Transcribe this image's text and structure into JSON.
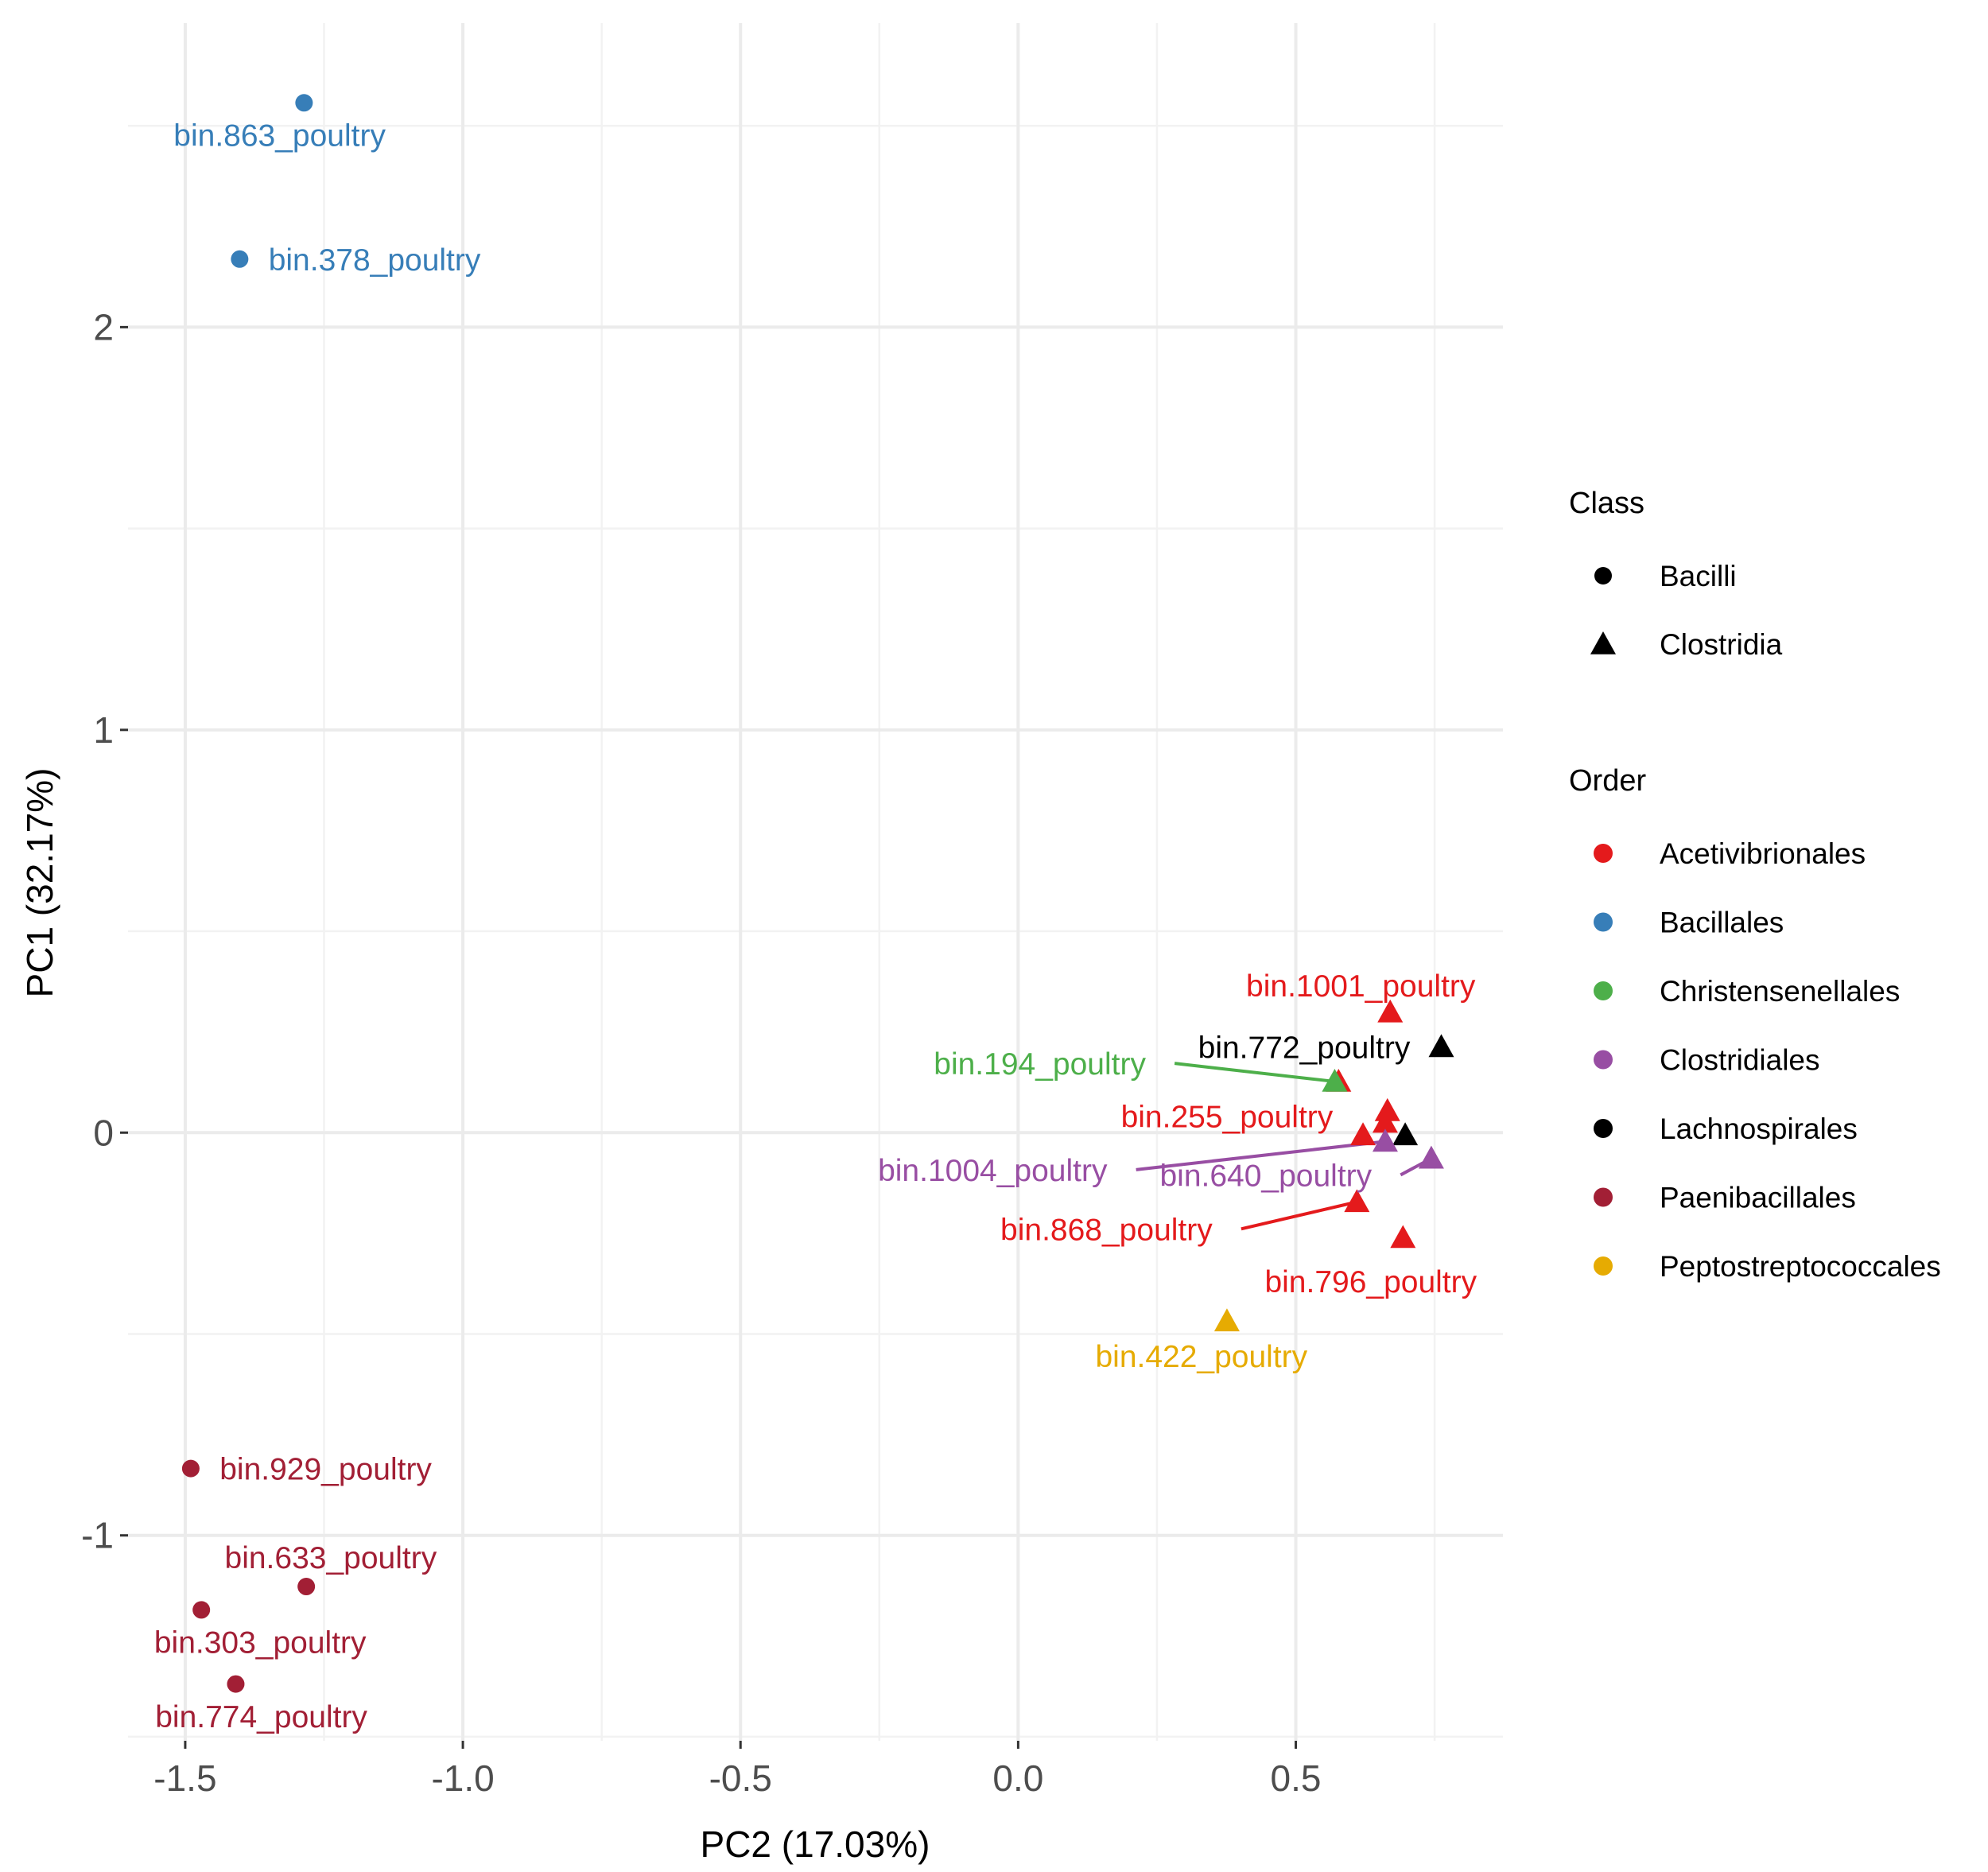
{
  "chart_data": {
    "type": "scatter",
    "xlabel": "PC2 (17.03%)",
    "ylabel": "PC1 (32.17%)",
    "xlim": [
      -1.603,
      0.873
    ],
    "ylim": [
      -1.51,
      2.755
    ],
    "x_ticks": [
      -1.5,
      -1.0,
      -0.5,
      0.0,
      0.5
    ],
    "x_tick_labels": [
      "-1.5",
      "-1.0",
      "-0.5",
      "0.0",
      "0.5"
    ],
    "y_ticks": [
      -1,
      0,
      1,
      2
    ],
    "y_tick_labels": [
      "-1",
      "0",
      "1",
      "2"
    ],
    "x_minor": [
      -1.25,
      -0.75,
      -0.25,
      0.25,
      0.75
    ],
    "y_minor": [
      -1.5,
      -0.5,
      0.5,
      1.5,
      2.5
    ],
    "grid": true,
    "legend_position": "right",
    "legend": {
      "class_title": "Class",
      "classes": [
        {
          "name": "Bacilli",
          "shape": "circle"
        },
        {
          "name": "Clostridia",
          "shape": "triangle"
        }
      ],
      "order_title": "Order",
      "orders": [
        {
          "name": "Acetivibrionales",
          "color": "#E41A1C"
        },
        {
          "name": "Bacillales",
          "color": "#377EB8"
        },
        {
          "name": "Christensenellales",
          "color": "#4DAF4A"
        },
        {
          "name": "Clostridiales",
          "color": "#984EA3"
        },
        {
          "name": "Lachnospirales",
          "color": "#000000"
        },
        {
          "name": "Paenibacillales",
          "color": "#A21F35"
        },
        {
          "name": "Peptostreptococcales",
          "color": "#E6AB02"
        }
      ]
    },
    "points": [
      {
        "label": "bin.863_poultry",
        "x": -1.286,
        "y": 2.557,
        "class": "Bacilli",
        "order": "Bacillales",
        "label_at": [
          -1.33,
          2.478
        ],
        "leader": false
      },
      {
        "label": "bin.378_poultry",
        "x": -1.402,
        "y": 2.169,
        "class": "Bacilli",
        "order": "Bacillales",
        "label_at": [
          -1.159,
          2.169
        ],
        "leader": false
      },
      {
        "label": "bin.929_poultry",
        "x": -1.49,
        "y": -0.834,
        "class": "Bacilli",
        "order": "Paenibacillales",
        "label_at": [
          -1.247,
          -0.834
        ],
        "leader": false
      },
      {
        "label": "bin.633_poultry",
        "x": -1.282,
        "y": -1.127,
        "class": "Bacilli",
        "order": "Paenibacillales",
        "label_at": [
          -1.238,
          -1.054
        ],
        "leader": false
      },
      {
        "label": "bin.303_poultry",
        "x": -1.471,
        "y": -1.185,
        "class": "Bacilli",
        "order": "Paenibacillales",
        "label_at": [
          -1.365,
          -1.264
        ],
        "leader": false
      },
      {
        "label": "bin.774_poultry",
        "x": -1.409,
        "y": -1.369,
        "class": "Bacilli",
        "order": "Paenibacillales",
        "label_at": [
          -1.363,
          -1.449
        ],
        "leader": false
      },
      {
        "label": "",
        "x": 0.577,
        "y": 0.127,
        "class": "Clostridia",
        "order": "Acetivibrionales"
      },
      {
        "label": "bin.1001_poultry",
        "x": 0.67,
        "y": 0.299,
        "class": "Clostridia",
        "order": "Acetivibrionales",
        "label_at": [
          0.617,
          0.366
        ],
        "leader": false
      },
      {
        "label": "bin.772_poultry",
        "x": 0.762,
        "y": 0.213,
        "class": "Clostridia",
        "order": "Lachnospirales",
        "label_at": [
          0.515,
          0.213
        ],
        "leader": false
      },
      {
        "label": "bin.194_poultry",
        "x": 0.57,
        "y": 0.127,
        "class": "Clostridia",
        "order": "Christensenellales",
        "label_at": [
          0.039,
          0.172
        ],
        "leader": true
      },
      {
        "label": "",
        "x": 0.665,
        "y": 0.054,
        "class": "Clostridia",
        "order": "Acetivibrionales"
      },
      {
        "label": "",
        "x": 0.661,
        "y": 0.025,
        "class": "Clostridia",
        "order": "Acetivibrionales"
      },
      {
        "label": "bin.255_poultry",
        "x": 0.621,
        "y": -0.006,
        "class": "Clostridia",
        "order": "Acetivibrionales",
        "label_at": [
          0.376,
          0.041
        ],
        "leader": false
      },
      {
        "label": "",
        "x": 0.697,
        "y": -0.006,
        "class": "Clostridia",
        "order": "Lachnospirales"
      },
      {
        "label": "bin.1004_poultry",
        "x": 0.661,
        "y": -0.022,
        "class": "Clostridia",
        "order": "Clostridiales",
        "label_at": [
          -0.046,
          -0.092
        ],
        "leader": true
      },
      {
        "label": "bin.640_poultry",
        "x": 0.744,
        "y": -0.064,
        "class": "Clostridia",
        "order": "Clostridiales",
        "label_at": [
          0.446,
          -0.105
        ],
        "leader": true
      },
      {
        "label": "bin.868_poultry",
        "x": 0.61,
        "y": -0.172,
        "class": "Clostridia",
        "order": "Acetivibrionales",
        "label_at": [
          0.159,
          -0.239
        ],
        "leader": true
      },
      {
        "label": "bin.796_poultry",
        "x": 0.693,
        "y": -0.261,
        "class": "Clostridia",
        "order": "Acetivibrionales",
        "label_at": [
          0.635,
          -0.369
        ],
        "leader": false
      },
      {
        "label": "bin.422_poultry",
        "x": 0.376,
        "y": -0.468,
        "class": "Clostridia",
        "order": "Peptostreptococcales",
        "label_at": [
          0.33,
          -0.554
        ],
        "leader": false
      }
    ]
  }
}
